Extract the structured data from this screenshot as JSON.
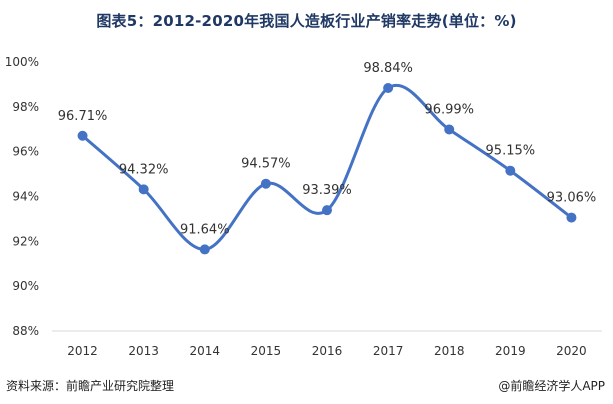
{
  "footer": {
    "source": "资料来源：前瞻产业研究院整理",
    "brand": "@前瞻经济学人APP"
  },
  "colors": {
    "line": "#4472c4",
    "marker": "#4472c4",
    "title": "#1f3864",
    "grid": "#d9d9d9",
    "text": "#333333"
  },
  "chart_data": {
    "type": "line",
    "title": "图表5：2012-2020年我国人造板行业产销率走势(单位：%)",
    "xlabel": "",
    "ylabel": "",
    "categories": [
      "2012",
      "2013",
      "2014",
      "2015",
      "2016",
      "2017",
      "2018",
      "2019",
      "2020"
    ],
    "series": [
      {
        "name": "产销率",
        "values": [
          96.71,
          94.32,
          91.64,
          94.57,
          93.39,
          98.84,
          96.99,
          95.15,
          93.06
        ],
        "labels": [
          "96.71%",
          "94.32%",
          "91.64%",
          "94.57%",
          "93.39%",
          "98.84%",
          "96.99%",
          "95.15%",
          "93.06%"
        ]
      }
    ],
    "ylim": [
      88,
      100
    ],
    "yticks": [
      88,
      90,
      92,
      94,
      96,
      98,
      100
    ],
    "ytick_labels": [
      "88%",
      "90%",
      "92%",
      "94%",
      "96%",
      "98%",
      "100%"
    ],
    "smooth": true,
    "grid": false,
    "legend": "none"
  }
}
